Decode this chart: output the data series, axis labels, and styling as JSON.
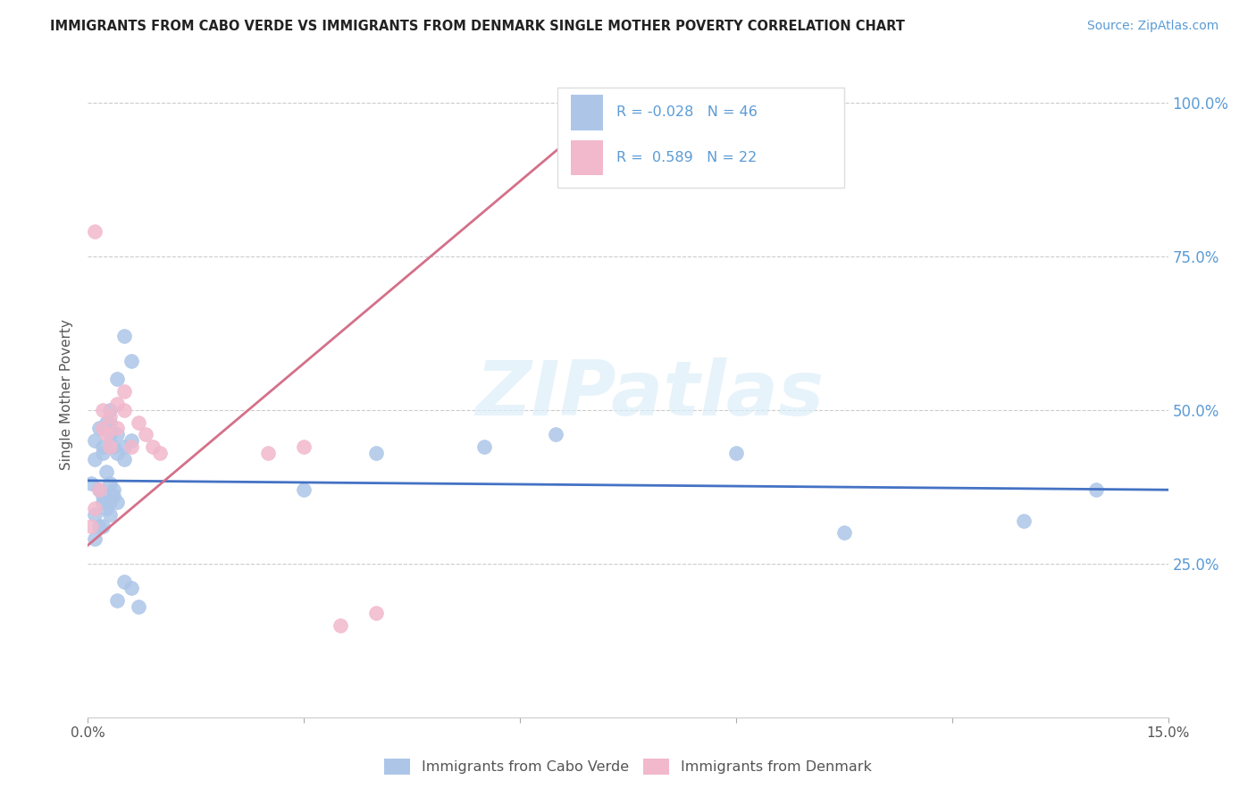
{
  "title": "IMMIGRANTS FROM CABO VERDE VS IMMIGRANTS FROM DENMARK SINGLE MOTHER POVERTY CORRELATION CHART",
  "source": "Source: ZipAtlas.com",
  "ylabel": "Single Mother Poverty",
  "legend_label1": "Immigrants from Cabo Verde",
  "legend_label2": "Immigrants from Denmark",
  "r1": "-0.028",
  "n1": "46",
  "r2": "0.589",
  "n2": "22",
  "xlim": [
    0.0,
    0.15
  ],
  "ylim": [
    0.0,
    1.05
  ],
  "yticks": [
    0.25,
    0.5,
    0.75,
    1.0
  ],
  "ytick_labels_right": [
    "25.0%",
    "50.0%",
    "75.0%",
    "100.0%"
  ],
  "xtick_positions": [
    0.0,
    0.03,
    0.06,
    0.09,
    0.12,
    0.15
  ],
  "xtick_labels": [
    "0.0%",
    "",
    "",
    "",
    "",
    "15.0%"
  ],
  "color_blue": "#adc6e8",
  "color_pink": "#f2b8cc",
  "color_blue_line": "#4472c4",
  "color_pink_line": "#d4708a",
  "color_grid": "#cccccc",
  "watermark_text": "ZIPatlas",
  "cabo_verde_x": [
    0.0005,
    0.001,
    0.0015,
    0.002,
    0.0025,
    0.003,
    0.0035,
    0.001,
    0.0015,
    0.002,
    0.0025,
    0.003,
    0.0035,
    0.004,
    0.001,
    0.0015,
    0.002,
    0.0025,
    0.003,
    0.0035,
    0.001,
    0.002,
    0.003,
    0.004,
    0.005,
    0.002,
    0.003,
    0.004,
    0.005,
    0.006,
    0.003,
    0.004,
    0.005,
    0.006,
    0.004,
    0.005,
    0.006,
    0.007,
    0.03,
    0.04,
    0.055,
    0.065,
    0.09,
    0.105,
    0.13,
    0.14
  ],
  "cabo_verde_y": [
    0.38,
    0.42,
    0.37,
    0.36,
    0.4,
    0.35,
    0.37,
    0.45,
    0.47,
    0.43,
    0.48,
    0.5,
    0.44,
    0.46,
    0.33,
    0.31,
    0.35,
    0.34,
    0.38,
    0.36,
    0.29,
    0.31,
    0.33,
    0.35,
    0.42,
    0.44,
    0.46,
    0.43,
    0.44,
    0.45,
    0.48,
    0.55,
    0.62,
    0.58,
    0.19,
    0.22,
    0.21,
    0.18,
    0.37,
    0.43,
    0.44,
    0.46,
    0.43,
    0.3,
    0.32,
    0.37
  ],
  "denmark_x": [
    0.0005,
    0.001,
    0.001,
    0.0015,
    0.002,
    0.002,
    0.0025,
    0.003,
    0.003,
    0.004,
    0.004,
    0.005,
    0.005,
    0.006,
    0.007,
    0.008,
    0.009,
    0.01,
    0.025,
    0.03,
    0.035,
    0.04
  ],
  "denmark_y": [
    0.31,
    0.34,
    0.79,
    0.37,
    0.47,
    0.5,
    0.46,
    0.49,
    0.44,
    0.51,
    0.47,
    0.53,
    0.5,
    0.44,
    0.48,
    0.46,
    0.44,
    0.43,
    0.43,
    0.44,
    0.15,
    0.17
  ],
  "blue_line_x": [
    0.0,
    0.15
  ],
  "blue_line_y": [
    0.385,
    0.37
  ],
  "pink_line_x": [
    0.0,
    0.075
  ],
  "pink_line_y": [
    0.28,
    1.02
  ]
}
